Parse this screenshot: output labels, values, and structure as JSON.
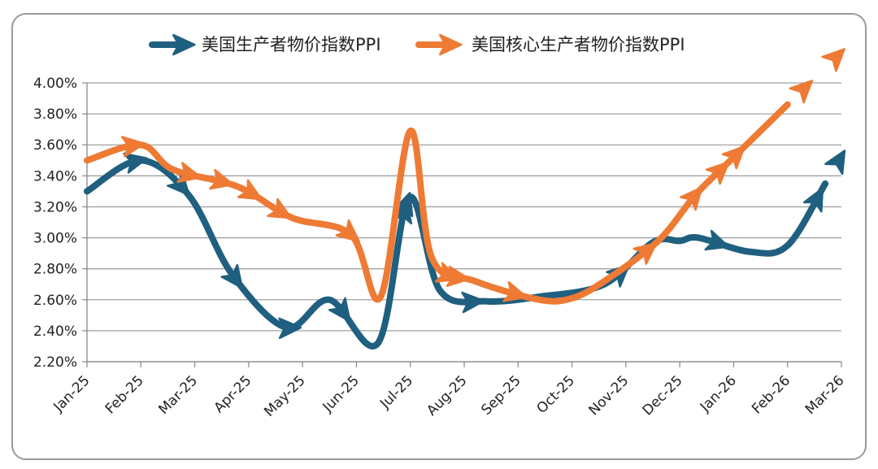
{
  "chart_data": {
    "type": "line",
    "title": "",
    "xlabel": "",
    "ylabel": "",
    "categories": [
      "Jan-25",
      "Feb-25",
      "Mar-25",
      "Apr-25",
      "May-25",
      "Jun-25",
      "Jul-25",
      "Aug-25",
      "Sep-25",
      "Oct-25",
      "Nov-25",
      "Dec-25",
      "Jan-26",
      "Feb-26",
      "Mar-26"
    ],
    "y_ticks": [
      "2.20%",
      "2.40%",
      "2.60%",
      "2.80%",
      "3.00%",
      "3.20%",
      "3.40%",
      "3.60%",
      "3.80%",
      "4.00%"
    ],
    "ylim": [
      2.2,
      4.0
    ],
    "grid": true,
    "legend_position": "top",
    "smooth": true,
    "series": [
      {
        "name": "美国生产者物价指数PPI",
        "color": "#1f5f7f",
        "x": [
          0,
          1,
          1.9,
          2.7,
          3.7,
          4.5,
          5.4,
          5.98,
          6.55,
          7.4,
          8.4,
          9.6,
          10.5,
          11.0,
          11.35,
          12.3,
          13.0,
          13.7
        ],
        "y": [
          3.3,
          3.5,
          3.27,
          2.76,
          2.42,
          2.6,
          2.32,
          3.26,
          2.66,
          2.59,
          2.62,
          2.7,
          2.97,
          2.98,
          3.0,
          2.91,
          2.95,
          3.35
        ],
        "arrow_at": [
          0.9,
          1.75,
          2.75,
          3.75,
          4.75,
          5.88,
          5.92,
          7.15,
          9.9,
          11.7,
          13.55,
          13.95
        ]
      },
      {
        "name": "美国核心生产者物价指数PPI",
        "color": "#ee7a34",
        "x": [
          0,
          1,
          1.6,
          2.8,
          3.8,
          4.9,
          5.45,
          6.0,
          6.4,
          7.2,
          8.4,
          9.0,
          9.6,
          10.6,
          11.3,
          12.0,
          13.0
        ],
        "y": [
          3.5,
          3.6,
          3.44,
          3.33,
          3.13,
          3.02,
          2.62,
          3.69,
          2.87,
          2.72,
          2.6,
          2.61,
          2.72,
          2.98,
          3.28,
          3.52,
          3.86
        ],
        "arrow_at": [
          0.85,
          1.9,
          2.5,
          3.05,
          3.6,
          4.88,
          6.7,
          6.88,
          7.95,
          10.4,
          11.27,
          11.75,
          12.05,
          13.3,
          13.9
        ]
      }
    ]
  }
}
